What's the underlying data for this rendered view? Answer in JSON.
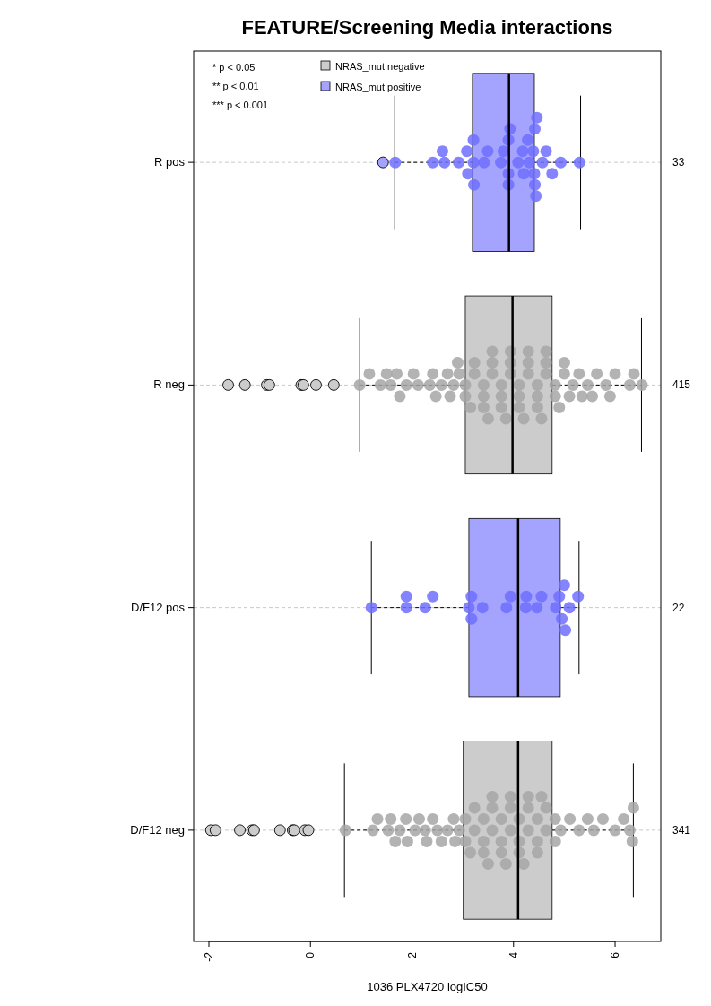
{
  "chart_data": {
    "type": "box",
    "title": "FEATURE/Screening Media interactions",
    "xlabel": "1036 PLX4720 logIC50",
    "orientation": "horizontal",
    "categories": [
      "R pos",
      "R neg",
      "D/F12 pos",
      "D/F12 neg"
    ],
    "xlim": [
      -2.3,
      6.9
    ],
    "xticks": [
      -2,
      0,
      2,
      4,
      6
    ],
    "grid": "y",
    "legend": "top left",
    "annotations": [
      "* p < 0.05",
      "** p < 0.01",
      "*** p < 0.001",
      "33",
      "415",
      "22",
      "341"
    ],
    "series": [
      {
        "name": "NRAS_mut negative",
        "color": "#cccccc",
        "boxes": [
          null,
          {
            "low": 0.97,
            "q1": 3.05,
            "median": 3.98,
            "q3": 4.76,
            "high": 6.52,
            "outliers": [
              -1.62,
              -1.29,
              -0.86,
              -0.81,
              -0.18,
              -0.14,
              0.11,
              0.46
            ]
          },
          null,
          {
            "low": 0.67,
            "q1": 3.01,
            "median": 4.09,
            "q3": 4.76,
            "high": 6.36,
            "outliers": [
              -1.96,
              -1.87,
              -1.39,
              -1.15,
              -1.11,
              -0.6,
              -0.35,
              -0.32,
              -0.11,
              -0.04
            ]
          }
        ]
      },
      {
        "name": "NRAS_mut positive",
        "color": "#a4a4ff",
        "boxes": [
          {
            "low": 1.66,
            "q1": 3.19,
            "median": 3.91,
            "q3": 4.41,
            "high": 5.32,
            "outliers": [
              1.43
            ]
          },
          null,
          {
            "low": 1.2,
            "q1": 3.12,
            "median": 4.09,
            "q3": 4.92,
            "high": 5.29
          },
          null
        ]
      },
      {
        "type": "scatter",
        "color": "#6f6fff",
        "x": [
          "R pos",
          "R pos",
          "R pos",
          "R pos",
          "R pos",
          "R pos",
          "R pos",
          "R pos",
          "R pos",
          "R pos",
          "R pos",
          "R pos",
          "R pos",
          "R pos",
          "R pos",
          "R pos",
          "R pos",
          "R pos",
          "R pos",
          "R pos",
          "R pos",
          "R pos",
          "R pos",
          "R pos",
          "R pos",
          "R pos",
          "R pos",
          "R pos",
          "R pos",
          "R pos",
          "R pos",
          "R pos",
          "R pos",
          "R pos"
        ],
        "values": [
          1.67,
          2.41,
          2.6,
          2.64,
          2.92,
          3.08,
          3.1,
          3.21,
          3.21,
          3.22,
          3.42,
          3.49,
          3.75,
          3.8,
          3.9,
          3.9,
          3.9,
          3.93,
          4.09,
          4.18,
          4.2,
          4.28,
          4.31,
          4.39,
          4.41,
          4.42,
          4.42,
          4.44,
          4.46,
          4.57,
          4.64,
          4.76,
          4.93,
          5.3
        ]
      },
      {
        "type": "scatter",
        "color": "#6f6fff",
        "x": [
          "D/F12 pos",
          "D/F12 pos",
          "D/F12 pos",
          "D/F12 pos",
          "D/F12 pos",
          "D/F12 pos",
          "D/F12 pos",
          "D/F12 pos",
          "D/F12 pos",
          "D/F12 pos",
          "D/F12 pos",
          "D/F12 pos",
          "D/F12 pos",
          "D/F12 pos",
          "D/F12 pos",
          "D/F12 pos",
          "D/F12 pos",
          "D/F12 pos",
          "D/F12 pos",
          "D/F12 pos",
          "D/F12 pos",
          "D/F12 pos"
        ],
        "values": [
          1.2,
          1.89,
          1.89,
          2.26,
          2.41,
          3.12,
          3.17,
          3.17,
          3.39,
          3.86,
          3.94,
          4.24,
          4.25,
          4.46,
          4.55,
          4.83,
          4.9,
          4.95,
          5.0,
          5.02,
          5.1,
          5.27
        ]
      },
      {
        "type": "scatter",
        "color": "#a6a6a6",
        "x": [
          "R neg",
          "R neg",
          "R neg",
          "R neg",
          "R neg",
          "R neg",
          "R neg",
          "R neg",
          "R neg",
          "R neg",
          "R neg",
          "R neg",
          "R neg",
          "R neg",
          "R neg",
          "R neg",
          "R neg",
          "R neg",
          "R neg",
          "R neg",
          "R neg",
          "R neg",
          "R neg",
          "R neg",
          "R neg",
          "R neg",
          "R neg",
          "R neg",
          "R neg",
          "R neg",
          "R neg",
          "R neg",
          "R neg",
          "R neg",
          "R neg",
          "R neg",
          "R neg",
          "R neg",
          "R neg",
          "R neg",
          "R neg",
          "R neg",
          "R neg",
          "R neg",
          "R neg",
          "R neg",
          "R neg",
          "R neg",
          "R neg",
          "R neg",
          "R neg",
          "R neg",
          "R neg",
          "R neg",
          "R neg",
          "R neg",
          "R neg",
          "R neg",
          "R neg",
          "R neg",
          "R neg",
          "R neg",
          "R neg",
          "R neg",
          "R neg",
          "R neg",
          "R neg",
          "R neg",
          "R neg",
          "R neg"
        ],
        "values": [
          0.97,
          1.16,
          1.38,
          1.5,
          1.58,
          1.7,
          1.76,
          1.89,
          2.03,
          2.12,
          2.35,
          2.41,
          2.47,
          2.58,
          2.7,
          2.82,
          2.93,
          3.05,
          3.05,
          3.23,
          3.23,
          3.41,
          3.41,
          3.41,
          3.58,
          3.58,
          3.58,
          3.76,
          3.76,
          3.76,
          3.94,
          3.94,
          3.94,
          4.11,
          4.11,
          4.11,
          4.29,
          4.29,
          4.29,
          4.47,
          4.47,
          4.47,
          4.64,
          4.64,
          4.64,
          4.82,
          4.82,
          5.0,
          5.0,
          5.17,
          5.29,
          5.46,
          5.64,
          5.82,
          6.0,
          6.29,
          6.37,
          6.53,
          2.9,
          3.15,
          3.5,
          3.85,
          4.2,
          4.55,
          4.9,
          5.1,
          2.75,
          5.35,
          5.55,
          5.9
        ]
      },
      {
        "type": "scatter",
        "color": "#a6a6a6",
        "x": [
          "D/F12 neg",
          "D/F12 neg",
          "D/F12 neg",
          "D/F12 neg",
          "D/F12 neg",
          "D/F12 neg",
          "D/F12 neg",
          "D/F12 neg",
          "D/F12 neg",
          "D/F12 neg",
          "D/F12 neg",
          "D/F12 neg",
          "D/F12 neg",
          "D/F12 neg",
          "D/F12 neg",
          "D/F12 neg",
          "D/F12 neg",
          "D/F12 neg",
          "D/F12 neg",
          "D/F12 neg",
          "D/F12 neg",
          "D/F12 neg",
          "D/F12 neg",
          "D/F12 neg",
          "D/F12 neg",
          "D/F12 neg",
          "D/F12 neg",
          "D/F12 neg",
          "D/F12 neg",
          "D/F12 neg",
          "D/F12 neg",
          "D/F12 neg",
          "D/F12 neg",
          "D/F12 neg",
          "D/F12 neg",
          "D/F12 neg",
          "D/F12 neg",
          "D/F12 neg",
          "D/F12 neg",
          "D/F12 neg",
          "D/F12 neg",
          "D/F12 neg",
          "D/F12 neg",
          "D/F12 neg",
          "D/F12 neg",
          "D/F12 neg",
          "D/F12 neg",
          "D/F12 neg",
          "D/F12 neg",
          "D/F12 neg",
          "D/F12 neg",
          "D/F12 neg",
          "D/F12 neg",
          "D/F12 neg",
          "D/F12 neg",
          "D/F12 neg",
          "D/F12 neg",
          "D/F12 neg",
          "D/F12 neg",
          "D/F12 neg",
          "D/F12 neg",
          "D/F12 neg",
          "D/F12 neg",
          "D/F12 neg",
          "D/F12 neg"
        ],
        "values": [
          0.69,
          1.23,
          1.32,
          1.53,
          1.58,
          1.67,
          1.76,
          1.88,
          1.91,
          2.06,
          2.14,
          2.26,
          2.29,
          2.41,
          2.5,
          2.58,
          2.7,
          2.82,
          2.93,
          3.05,
          3.05,
          3.23,
          3.23,
          3.41,
          3.41,
          3.41,
          3.58,
          3.58,
          3.58,
          3.76,
          3.76,
          3.76,
          3.94,
          3.94,
          3.94,
          4.11,
          4.11,
          4.11,
          4.29,
          4.29,
          4.29,
          4.47,
          4.47,
          4.47,
          4.64,
          4.64,
          4.82,
          4.82,
          4.93,
          5.11,
          5.29,
          5.46,
          5.58,
          5.76,
          6.0,
          6.17,
          6.29,
          6.34,
          6.36,
          2.85,
          3.15,
          3.5,
          3.85,
          4.2,
          4.55
        ]
      }
    ]
  }
}
